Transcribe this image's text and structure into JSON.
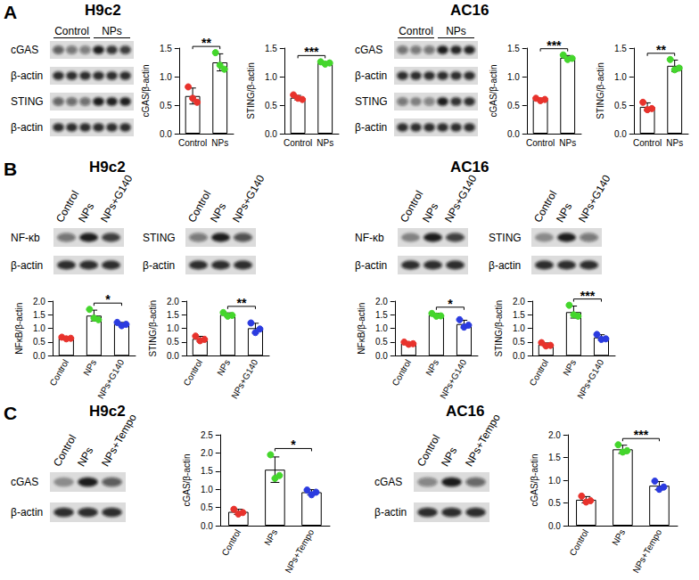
{
  "panels": [
    {
      "label": "A",
      "cell_lines": [
        "H9c2",
        "AC16"
      ]
    },
    {
      "label": "B",
      "cell_lines": [
        "H9c2",
        "AC16"
      ]
    },
    {
      "label": "C",
      "cell_lines": [
        "H9c2",
        "AC16"
      ]
    }
  ],
  "blots": [
    {
      "lane_groups": [
        "Control",
        "NPs"
      ],
      "rows": [
        "cGAS",
        "β-actin",
        "STING",
        "β-actin"
      ]
    },
    {
      "lane_groups": [
        "Control",
        "NPs"
      ],
      "rows": [
        "cGAS",
        "β-actin",
        "STING",
        "β-actin"
      ]
    },
    {
      "lanes": [
        "Control",
        "NPs",
        "NPs+G140"
      ],
      "rows": [
        "NF-κb",
        "β-actin"
      ]
    },
    {
      "lanes": [
        "Control",
        "NPs",
        "NPs+G140"
      ],
      "rows": [
        "STING",
        "β-actin"
      ]
    },
    {
      "lanes": [
        "Control",
        "NPs",
        "NPs+G140"
      ],
      "rows": [
        "NF-κb",
        "β-actin"
      ]
    },
    {
      "lanes": [
        "Control",
        "NPs",
        "NPs+G140"
      ],
      "rows": [
        "STING",
        "β-actin"
      ]
    },
    {
      "lanes": [
        "Control",
        "NPs",
        "NPs+Tempo"
      ],
      "rows": [
        "cGAS",
        "β-actin"
      ]
    },
    {
      "lanes": [
        "Control",
        "NPs",
        "NPs+Tempo"
      ],
      "rows": [
        "cGAS",
        "β-actin"
      ]
    }
  ],
  "chart_data": [
    {
      "type": "bar",
      "y_label": "cGAS/β-actin",
      "categories": [
        "Control",
        "NPs"
      ],
      "values": [
        0.66,
        1.25
      ],
      "errors": [
        0.14,
        0.15
      ],
      "points": [
        [
          0.82,
          0.62,
          0.55
        ],
        [
          1.42,
          1.2,
          1.13
        ]
      ],
      "colors": [
        "#e8322c",
        "#44d62c"
      ],
      "ylim": [
        0,
        1.5
      ],
      "yticks": [
        {
          "value": 0,
          "label": "0.0"
        },
        0.5,
        {
          "value": 1,
          "label": "1.0"
        },
        1.5
      ],
      "significance": [
        {
          "label": "**",
          "between": [
            "Control",
            "NPs"
          ]
        }
      ],
      "grid": false
    },
    {
      "type": "bar",
      "y_label": "STING/β-actin",
      "categories": [
        "Control",
        "NPs"
      ],
      "values": [
        0.63,
        1.24
      ],
      "errors": [
        0.04,
        0.02
      ],
      "points": [
        [
          0.68,
          0.62,
          0.6
        ],
        [
          1.26,
          1.22,
          1.24
        ]
      ],
      "colors": [
        "#e8322c",
        "#44d62c"
      ],
      "ylim": [
        0,
        1.5
      ],
      "yticks": [
        {
          "value": 0,
          "label": "0.0"
        },
        0.5,
        {
          "value": 1,
          "label": "1.0"
        },
        1.5
      ],
      "significance": [
        {
          "label": "***",
          "between": [
            "Control",
            "NPs"
          ]
        }
      ],
      "grid": false
    },
    {
      "type": "bar",
      "y_label": "cGAS/β-actin",
      "categories": [
        "Control",
        "NPs"
      ],
      "values": [
        0.6,
        1.33
      ],
      "errors": [
        0.02,
        0.04
      ],
      "points": [
        [
          0.62,
          0.58,
          0.6
        ],
        [
          1.38,
          1.3,
          1.32
        ]
      ],
      "colors": [
        "#e8322c",
        "#44d62c"
      ],
      "ylim": [
        0,
        1.5
      ],
      "yticks": [
        {
          "value": 0,
          "label": "0.0"
        },
        0.5,
        {
          "value": 1,
          "label": "1.0"
        },
        1.5
      ],
      "significance": [
        {
          "label": "***",
          "between": [
            "Control",
            "NPs"
          ]
        }
      ],
      "grid": false
    },
    {
      "type": "bar",
      "y_label": "STING/β-actin",
      "categories": [
        "Control",
        "NPs"
      ],
      "values": [
        0.47,
        1.19
      ],
      "errors": [
        0.07,
        0.1
      ],
      "points": [
        [
          0.55,
          0.42,
          0.44
        ],
        [
          1.3,
          1.12,
          1.15
        ]
      ],
      "colors": [
        "#e8322c",
        "#44d62c"
      ],
      "ylim": [
        0,
        1.5
      ],
      "yticks": [
        {
          "value": 0,
          "label": "0.0"
        },
        0.5,
        {
          "value": 1,
          "label": "1.0"
        },
        1.5
      ],
      "significance": [
        {
          "label": "**",
          "between": [
            "Control",
            "NPs"
          ]
        }
      ],
      "grid": false
    },
    {
      "type": "bar",
      "y_label": "NFκB/β-actin",
      "categories": [
        "Control",
        "NPs",
        "NPs+G140"
      ],
      "values": [
        0.65,
        1.47,
        1.16
      ],
      "errors": [
        0.03,
        0.2,
        0.06
      ],
      "points": [
        [
          0.68,
          0.62,
          0.64
        ],
        [
          1.7,
          1.38,
          1.32
        ],
        [
          1.22,
          1.1,
          1.15
        ]
      ],
      "colors": [
        "#e8322c",
        "#44d62c",
        "#2b3be0"
      ],
      "ylim": [
        0,
        2
      ],
      "yticks": [
        {
          "value": 0,
          "label": "0.0"
        },
        0.5,
        {
          "value": 1,
          "label": "1.0"
        },
        1.5,
        {
          "value": 2,
          "label": "2.0"
        }
      ],
      "significance": [
        {
          "label": "*",
          "between": [
            "NPs",
            "NPs+G140"
          ]
        }
      ],
      "grid": false
    },
    {
      "type": "bar",
      "y_label": "STING/β-actin",
      "categories": [
        "Control",
        "NPs",
        "NPs+G140"
      ],
      "values": [
        0.62,
        1.5,
        1.01
      ],
      "errors": [
        0.09,
        0.07,
        0.18
      ],
      "points": [
        [
          0.72,
          0.55,
          0.6
        ],
        [
          1.58,
          1.45,
          1.48
        ],
        [
          1.2,
          0.85,
          0.98
        ]
      ],
      "colors": [
        "#e8322c",
        "#44d62c",
        "#2b3be0"
      ],
      "ylim": [
        0,
        2
      ],
      "yticks": [
        {
          "value": 0,
          "label": "0.0"
        },
        0.5,
        {
          "value": 1,
          "label": "1.0"
        },
        1.5,
        {
          "value": 2,
          "label": "2.0"
        }
      ],
      "significance": [
        {
          "label": "**",
          "between": [
            "NPs",
            "NPs+G140"
          ]
        }
      ],
      "grid": false
    },
    {
      "type": "bar",
      "y_label": "NFκB/β-actin",
      "categories": [
        "Control",
        "NPs",
        "NPs+G140"
      ],
      "values": [
        0.45,
        1.49,
        1.16
      ],
      "errors": [
        0.04,
        0.06,
        0.14
      ],
      "points": [
        [
          0.5,
          0.42,
          0.44
        ],
        [
          1.55,
          1.45,
          1.46
        ],
        [
          1.32,
          1.05,
          1.12
        ]
      ],
      "colors": [
        "#e8322c",
        "#44d62c",
        "#2b3be0"
      ],
      "ylim": [
        0,
        2
      ],
      "yticks": [
        {
          "value": 0,
          "label": "0.0"
        },
        0.5,
        {
          "value": 1,
          "label": "1.0"
        },
        1.5,
        {
          "value": 2,
          "label": "2.0"
        }
      ],
      "significance": [
        {
          "label": "*",
          "between": [
            "NPs",
            "NPs+G140"
          ]
        }
      ],
      "grid": false
    },
    {
      "type": "bar",
      "y_label": "STING/β-actin",
      "categories": [
        "Control",
        "NPs",
        "NPs+G140"
      ],
      "values": [
        0.41,
        1.6,
        0.67
      ],
      "errors": [
        0.06,
        0.22,
        0.1
      ],
      "points": [
        [
          0.48,
          0.36,
          0.38
        ],
        [
          1.85,
          1.5,
          1.45
        ],
        [
          0.78,
          0.6,
          0.62
        ]
      ],
      "colors": [
        "#e8322c",
        "#44d62c",
        "#2b3be0"
      ],
      "ylim": [
        0,
        2
      ],
      "yticks": [
        {
          "value": 0,
          "label": "0.0"
        },
        0.5,
        {
          "value": 1,
          "label": "1.0"
        },
        1.5,
        {
          "value": 2,
          "label": "2.0"
        }
      ],
      "significance": [
        {
          "label": "***",
          "between": [
            "NPs",
            "NPs+G140"
          ]
        }
      ],
      "grid": false
    },
    {
      "type": "bar",
      "y_label": "cGAS/β-actin",
      "categories": [
        "Control",
        "NPs",
        "NPs+Tempo"
      ],
      "values": [
        0.38,
        1.54,
        0.92
      ],
      "errors": [
        0.07,
        0.35,
        0.07
      ],
      "points": [
        [
          0.45,
          0.32,
          0.36
        ],
        [
          1.95,
          1.3,
          1.38
        ],
        [
          0.98,
          0.85,
          0.92
        ]
      ],
      "colors": [
        "#e8322c",
        "#44d62c",
        "#2b3be0"
      ],
      "ylim": [
        0,
        2.5
      ],
      "yticks": [
        {
          "value": 0,
          "label": "0.0"
        },
        0.5,
        {
          "value": 1,
          "label": "1.0"
        },
        1.5,
        {
          "value": 2,
          "label": "2.0"
        },
        2.5
      ],
      "significance": [
        {
          "label": "*",
          "between": [
            "NPs",
            "NPs+Tempo"
          ]
        }
      ],
      "grid": false
    },
    {
      "type": "bar",
      "y_label": "cGAS/β-actin",
      "categories": [
        "Control",
        "NPs",
        "NPs+Tempo"
      ],
      "values": [
        0.57,
        1.68,
        0.88
      ],
      "errors": [
        0.07,
        0.09,
        0.09
      ],
      "points": [
        [
          0.65,
          0.52,
          0.55
        ],
        [
          1.78,
          1.62,
          1.65
        ],
        [
          0.98,
          0.8,
          0.85
        ]
      ],
      "colors": [
        "#e8322c",
        "#44d62c",
        "#2b3be0"
      ],
      "ylim": [
        0,
        2
      ],
      "yticks": [
        {
          "value": 0,
          "label": "0.0"
        },
        0.5,
        {
          "value": 1,
          "label": "1.0"
        },
        1.5,
        {
          "value": 2,
          "label": "2.0"
        }
      ],
      "significance": [
        {
          "label": "***",
          "between": [
            "NPs",
            "NPs+Tempo"
          ]
        }
      ],
      "grid": false
    }
  ]
}
